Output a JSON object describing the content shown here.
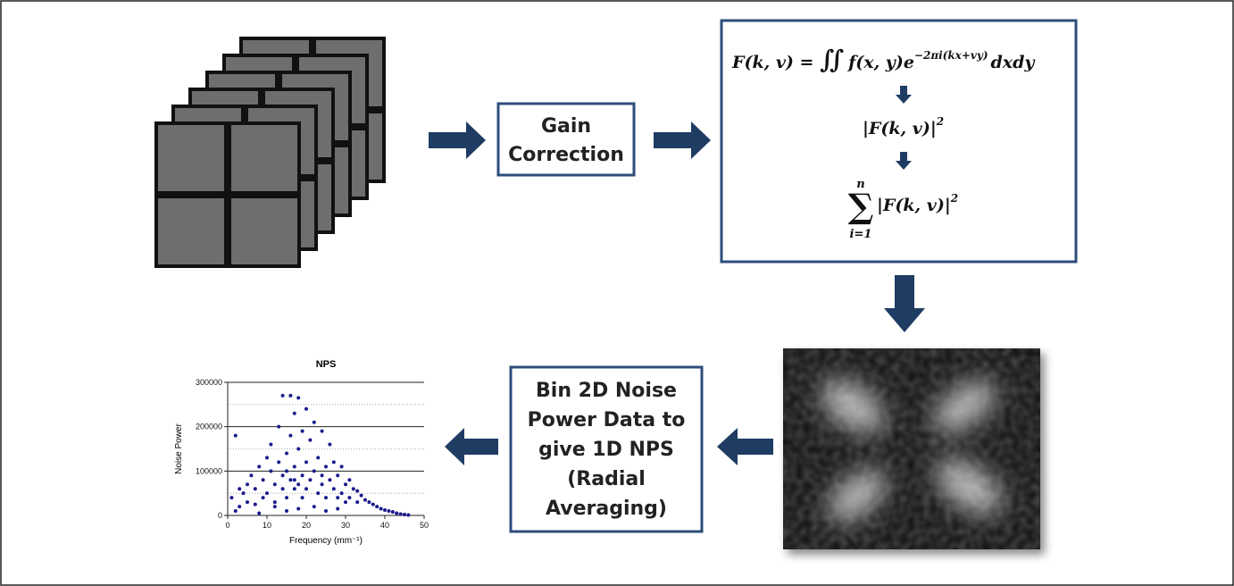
{
  "gain_box": {
    "lines": [
      "Gain",
      "Correction"
    ]
  },
  "formulas": {
    "fourier": {
      "lhs": "F(k, v) = ",
      "integral": "∬",
      "body": "f(x, y)e",
      "exponent": "−2πi(kx+vy)",
      "tail": "dxdy"
    },
    "power": {
      "body": "|F(k, v)|",
      "exponent": "2"
    },
    "sum": {
      "symbol": "∑",
      "upper": "n",
      "lower": "i=1",
      "body": "|F(k, v)|",
      "exponent": "2"
    }
  },
  "bin_box": {
    "lines": [
      "Bin 2D Noise",
      "Power Data to",
      "give 1D NPS",
      "(Radial",
      "Averaging)"
    ]
  },
  "chart_data": {
    "type": "scatter",
    "title": "NPS",
    "x_label": "Frequency (mm⁻¹)",
    "y_label": "Noise Power",
    "color": "#1a1a8c",
    "grid": true,
    "xlim": [
      0,
      50
    ],
    "ylim": [
      0,
      300000
    ],
    "xticks": [
      0,
      10,
      20,
      30,
      40,
      50
    ],
    "yticks": [
      0,
      100000,
      200000,
      300000
    ],
    "minor_yticks": [
      50000,
      150000,
      250000
    ],
    "x": [
      1,
      2,
      3,
      3,
      4,
      5,
      5,
      6,
      7,
      7,
      8,
      9,
      9,
      10,
      10,
      11,
      11,
      12,
      12,
      13,
      13,
      14,
      14,
      14,
      15,
      15,
      16,
      16,
      16,
      17,
      17,
      17,
      18,
      18,
      18,
      19,
      19,
      20,
      20,
      20,
      21,
      21,
      22,
      22,
      23,
      23,
      24,
      24,
      25,
      25,
      26,
      26,
      27,
      27,
      28,
      28,
      29,
      29,
      30,
      30,
      31,
      31,
      32,
      33,
      33,
      34,
      35,
      36,
      37,
      38,
      39,
      40,
      41,
      42,
      43,
      44,
      45,
      46,
      2,
      8,
      12,
      15,
      18,
      22,
      25,
      28,
      15,
      17,
      19,
      24
    ],
    "values": [
      40000,
      180000,
      60000,
      20000,
      50000,
      70000,
      30000,
      90000,
      60000,
      25000,
      110000,
      80000,
      40000,
      130000,
      50000,
      100000,
      160000,
      70000,
      30000,
      120000,
      200000,
      60000,
      270000,
      90000,
      140000,
      40000,
      180000,
      80000,
      270000,
      110000,
      60000,
      230000,
      150000,
      70000,
      265000,
      90000,
      40000,
      240000,
      120000,
      60000,
      170000,
      80000,
      210000,
      100000,
      50000,
      130000,
      190000,
      70000,
      110000,
      40000,
      160000,
      80000,
      120000,
      60000,
      90000,
      40000,
      110000,
      50000,
      70000,
      30000,
      80000,
      40000,
      60000,
      55000,
      30000,
      45000,
      35000,
      30000,
      25000,
      20000,
      15000,
      12000,
      10000,
      8000,
      5000,
      3000,
      2000,
      1000,
      10000,
      5000,
      20000,
      10000,
      15000,
      20000,
      10000,
      15000,
      100000,
      80000,
      190000,
      90000
    ]
  }
}
